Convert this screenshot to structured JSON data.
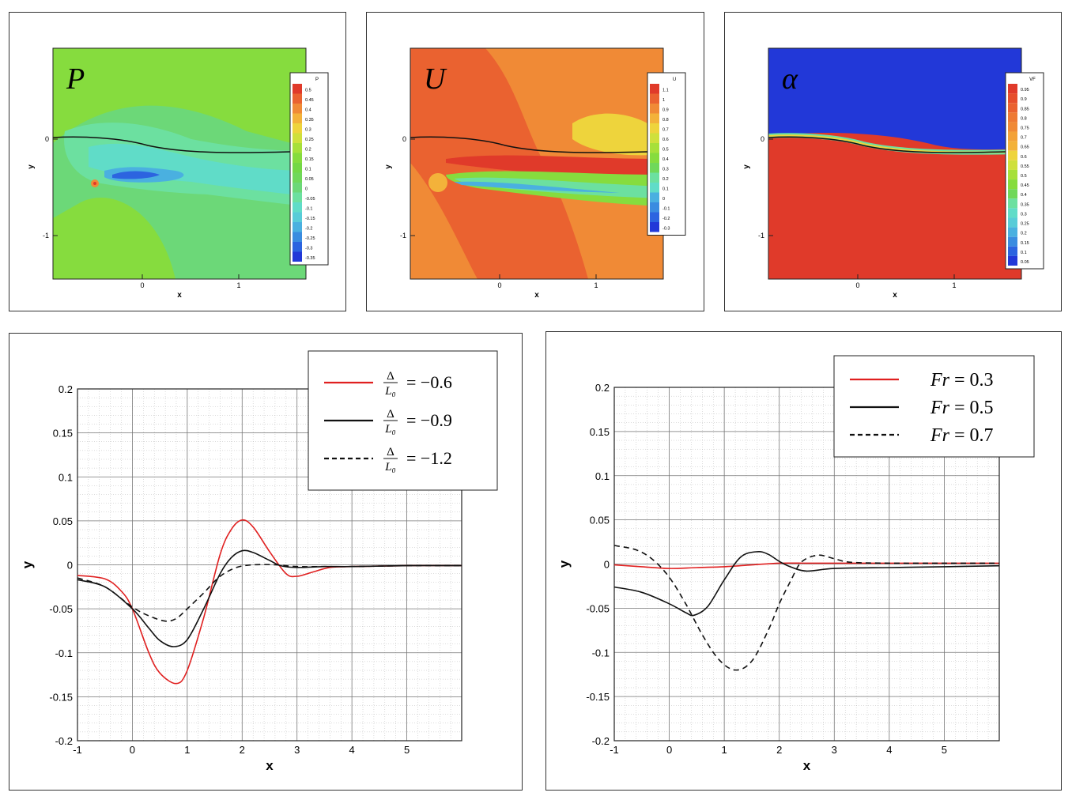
{
  "contours": [
    {
      "symbol": "P",
      "xlabel": "x",
      "ylabel": "y",
      "xticks": [
        "0",
        "1"
      ],
      "yticks": [
        "0",
        "-1"
      ],
      "legend_title": "P",
      "legend_levels": [
        "0.5",
        "0.45",
        "0.4",
        "0.35",
        "0.3",
        "0.25",
        "0.2",
        "0.15",
        "0.1",
        "0.05",
        "0",
        "-0.05",
        "-0.1",
        "-0.15",
        "-0.2",
        "-0.25",
        "-0.3",
        "-0.35"
      ],
      "legend_colors": [
        "#e03a2a",
        "#ea6230",
        "#f08a36",
        "#f3b23a",
        "#eed43c",
        "#cfe03c",
        "#a7e03a",
        "#86dc3e",
        "#74d846",
        "#70d85a",
        "#6cd878",
        "#6ce0a0",
        "#60dcc8",
        "#58ccd8",
        "#4ab0e0",
        "#3a8ce0",
        "#2c64e0",
        "#2238d8"
      ]
    },
    {
      "symbol": "U",
      "xlabel": "x",
      "ylabel": "y",
      "xticks": [
        "0",
        "1"
      ],
      "yticks": [
        "0",
        "-1"
      ],
      "legend_title": "U",
      "legend_levels": [
        "1.1",
        "1",
        "0.9",
        "0.8",
        "0.7",
        "0.6",
        "0.5",
        "0.4",
        "0.3",
        "0.2",
        "0.1",
        "0",
        "-0.1",
        "-0.2",
        "-0.3"
      ],
      "legend_colors": [
        "#e03a2a",
        "#ea6230",
        "#f08a36",
        "#f3b23a",
        "#eed43c",
        "#cfe03c",
        "#a7e03a",
        "#86dc3e",
        "#70d85a",
        "#6ce0a0",
        "#60dcc8",
        "#4ab0e0",
        "#3a8ce0",
        "#2c64e0",
        "#2238d8"
      ]
    },
    {
      "symbol": "α",
      "xlabel": "x",
      "ylabel": "y",
      "xticks": [
        "0",
        "1"
      ],
      "yticks": [
        "0",
        "-1"
      ],
      "legend_title": "VF",
      "legend_levels": [
        "0.95",
        "0.9",
        "0.85",
        "0.8",
        "0.75",
        "0.7",
        "0.65",
        "0.6",
        "0.55",
        "0.5",
        "0.45",
        "0.4",
        "0.35",
        "0.3",
        "0.25",
        "0.2",
        "0.15",
        "0.1",
        "0.05"
      ],
      "legend_colors": [
        "#e03a2a",
        "#e64e2c",
        "#ea6230",
        "#ee7a34",
        "#f08a36",
        "#f3a238",
        "#f3b23a",
        "#eed43c",
        "#cfe03c",
        "#a7e03a",
        "#86dc3e",
        "#70d85a",
        "#6ce0a0",
        "#60dcc8",
        "#58ccd8",
        "#4ab0e0",
        "#3a8ce0",
        "#2c64e0",
        "#2238d8"
      ]
    }
  ],
  "chart_data": [
    {
      "type": "line",
      "xlabel": "x",
      "ylabel": "y",
      "xlim": [
        -1,
        6
      ],
      "ylim": [
        -0.2,
        0.2
      ],
      "xticks": [
        -1,
        0,
        1,
        2,
        3,
        4,
        5
      ],
      "xtick_labels": [
        "-1",
        "0",
        "1",
        "2",
        "3",
        "4",
        "5"
      ],
      "yticks": [
        0.2,
        0.15,
        0.1,
        0.05,
        0,
        -0.05,
        -0.1,
        -0.15,
        -0.2
      ],
      "ytick_labels": [
        "0.2",
        "0.15",
        "0.1",
        "0.05",
        "0",
        "-0.05",
        "-0.1",
        "-0.15",
        "-0.2"
      ],
      "grid": true,
      "legend_position": "top-right",
      "series": [
        {
          "name": "Δ/L₀ = −0.6",
          "legend_value": "= −0.6",
          "color": "#e02020",
          "dash": "solid",
          "x": [
            -1,
            -0.5,
            -0.2,
            0,
            0.3,
            0.5,
            0.8,
            1,
            1.3,
            1.6,
            1.8,
            2,
            2.2,
            2.5,
            2.8,
            3,
            3.3,
            3.6,
            4,
            5,
            6
          ],
          "y": [
            -0.012,
            -0.016,
            -0.03,
            -0.05,
            -0.1,
            -0.123,
            -0.135,
            -0.12,
            -0.06,
            0.012,
            0.04,
            0.051,
            0.043,
            0.015,
            -0.01,
            -0.013,
            -0.008,
            -0.003,
            -0.002,
            -0.001,
            -0.001
          ]
        },
        {
          "name": "Δ/L₀ = −0.9",
          "legend_value": "= −0.9",
          "color": "#111111",
          "dash": "solid",
          "x": [
            -1,
            -0.5,
            0,
            0.3,
            0.5,
            0.75,
            1,
            1.3,
            1.6,
            1.8,
            2,
            2.2,
            2.5,
            2.7,
            3,
            3.5,
            4,
            5,
            6
          ],
          "y": [
            -0.017,
            -0.025,
            -0.05,
            -0.072,
            -0.086,
            -0.093,
            -0.085,
            -0.05,
            -0.01,
            0.008,
            0.016,
            0.014,
            0.005,
            -0.001,
            -0.003,
            -0.002,
            -0.002,
            -0.001,
            -0.001
          ]
        },
        {
          "name": "Δ/L₀ = −1.2",
          "legend_value": "= −1.2",
          "color": "#111111",
          "dash": "dashed",
          "x": [
            -1,
            -0.5,
            0,
            0.3,
            0.6,
            0.8,
            1,
            1.3,
            1.6,
            1.9,
            2.2,
            2.6,
            3,
            3.5,
            4,
            5,
            6
          ],
          "y": [
            -0.015,
            -0.025,
            -0.048,
            -0.058,
            -0.064,
            -0.061,
            -0.05,
            -0.032,
            -0.013,
            -0.003,
            0,
            0,
            -0.002,
            -0.002,
            -0.002,
            -0.001,
            -0.001
          ]
        }
      ]
    },
    {
      "type": "line",
      "xlabel": "x",
      "ylabel": "y",
      "xlim": [
        -1,
        6
      ],
      "ylim": [
        -0.2,
        0.2
      ],
      "xticks": [
        -1,
        0,
        1,
        2,
        3,
        4,
        5
      ],
      "xtick_labels": [
        "-1",
        "0",
        "1",
        "2",
        "3",
        "4",
        "5"
      ],
      "yticks": [
        0.2,
        0.15,
        0.1,
        0.05,
        0,
        -0.05,
        -0.1,
        -0.15,
        -0.2
      ],
      "ytick_labels": [
        "0.2",
        "0.15",
        "0.1",
        "0.05",
        "0",
        "-0.05",
        "-0.1",
        "-0.15",
        "-0.2"
      ],
      "grid": true,
      "legend_position": "top-right",
      "series": [
        {
          "name": "Fr = 0.3",
          "legend_value": "= 0.3",
          "color": "#e02020",
          "dash": "solid",
          "x": [
            -1,
            -0.5,
            0,
            0.5,
            1,
            1.5,
            2,
            2.5,
            3,
            4,
            5,
            6
          ],
          "y": [
            -0.001,
            -0.003,
            -0.005,
            -0.004,
            -0.003,
            -0.001,
            0.001,
            0.001,
            0.001,
            0.001,
            0.001,
            0.001
          ]
        },
        {
          "name": "Fr = 0.5",
          "legend_value": "= 0.5",
          "color": "#111111",
          "dash": "solid",
          "x": [
            -1,
            -0.5,
            0,
            0.3,
            0.45,
            0.7,
            1,
            1.3,
            1.6,
            1.8,
            2,
            2.2,
            2.5,
            3,
            4,
            5,
            6
          ],
          "y": [
            -0.026,
            -0.032,
            -0.045,
            -0.055,
            -0.058,
            -0.048,
            -0.018,
            0.008,
            0.014,
            0.011,
            0.003,
            -0.003,
            -0.008,
            -0.005,
            -0.004,
            -0.003,
            -0.002
          ]
        },
        {
          "name": "Fr = 0.7",
          "legend_value": "= 0.7",
          "color": "#111111",
          "dash": "dashed",
          "x": [
            -1,
            -0.6,
            -0.3,
            0,
            0.3,
            0.6,
            0.9,
            1.2,
            1.5,
            1.8,
            2,
            2.2,
            2.4,
            2.7,
            3,
            3.3,
            4,
            5,
            6
          ],
          "y": [
            0.021,
            0.016,
            0.005,
            -0.015,
            -0.045,
            -0.08,
            -0.108,
            -0.12,
            -0.11,
            -0.075,
            -0.045,
            -0.02,
            0.002,
            0.01,
            0.006,
            0.002,
            0.001,
            0.001,
            0.001
          ]
        }
      ]
    }
  ]
}
